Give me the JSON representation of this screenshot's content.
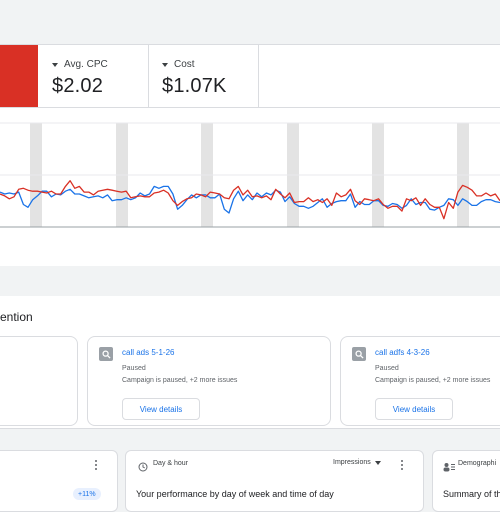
{
  "metrics": [
    {
      "label": "Avg. CPC",
      "value": "$2.02"
    },
    {
      "label": "Cost",
      "value": "$1.07K"
    }
  ],
  "chart_data": {
    "type": "line",
    "series": [
      {
        "color": "#d93025",
        "values": [
          60,
          62,
          65,
          63,
          55,
          54,
          56,
          57,
          57,
          58,
          59,
          57,
          60,
          60,
          52,
          46,
          54,
          52,
          58,
          58,
          61,
          57,
          56,
          55,
          56,
          57,
          58,
          57,
          64,
          63,
          62,
          63,
          63,
          59,
          58,
          56,
          59,
          67,
          72,
          68,
          65,
          64,
          60,
          61,
          63,
          58,
          59,
          60,
          64,
          65,
          56,
          52,
          61,
          56,
          63,
          62,
          64,
          62,
          66,
          55,
          60,
          64,
          59,
          69,
          68,
          68,
          64,
          68,
          66,
          69,
          65,
          72,
          59,
          63,
          61,
          55,
          67,
          71,
          65,
          66,
          67,
          65,
          71,
          75,
          73,
          73,
          78,
          65,
          67,
          64,
          72,
          65,
          71,
          74,
          74,
          86,
          69,
          75,
          58,
          51,
          53,
          56,
          62,
          62,
          59,
          62,
          60,
          67
        ]
      },
      {
        "color": "#1a73e8",
        "values": [
          58,
          60,
          59,
          60,
          58,
          71,
          74,
          66,
          62,
          57,
          57,
          63,
          60,
          61,
          57,
          55,
          60,
          60,
          62,
          64,
          63,
          62,
          64,
          61,
          67,
          66,
          66,
          64,
          66,
          64,
          59,
          62,
          60,
          52,
          54,
          52,
          52,
          60,
          76,
          72,
          66,
          61,
          64,
          61,
          61,
          64,
          64,
          60,
          76,
          80,
          65,
          57,
          67,
          61,
          66,
          59,
          63,
          59,
          61,
          56,
          58,
          68,
          63,
          70,
          73,
          73,
          75,
          73,
          69,
          65,
          74,
          70,
          68,
          67,
          67,
          60,
          74,
          68,
          71,
          71,
          67,
          67,
          72,
          73,
          70,
          71,
          75,
          72,
          65,
          71,
          69,
          69,
          76,
          77,
          74,
          72,
          65,
          66,
          72,
          65,
          68,
          72,
          72,
          68,
          66,
          66,
          68,
          69
        ]
      }
    ]
  },
  "recommendations": {
    "title": "ention",
    "cards": [
      {
        "title": "call ads 5-1-26",
        "status": "Paused",
        "desc": "Campaign is paused, +2 more issues",
        "button": "View details",
        "icon": "search-icon"
      },
      {
        "title": "call adfs 4-3-26",
        "status": "Paused",
        "desc": "Campaign is paused, +2 more issues",
        "button": "View details",
        "icon": "search-icon"
      }
    ]
  },
  "bottom": {
    "badge": "+11%",
    "dayhour": {
      "title": "Day & hour",
      "dropdown": "Impressions",
      "heading": "Your performance by day of week and time of day"
    },
    "demographics": {
      "title": "Demographi",
      "heading": "Summary of th"
    }
  }
}
